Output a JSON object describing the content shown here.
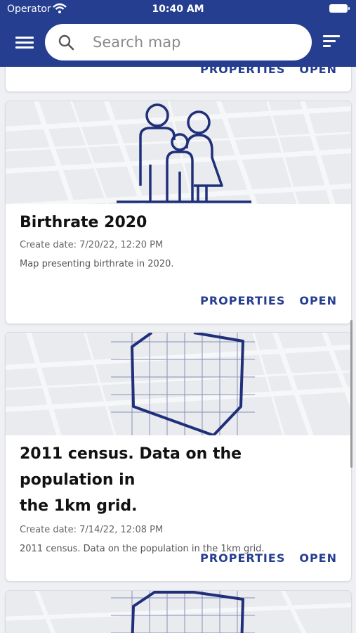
{
  "status": {
    "carrier": "Operator",
    "time": "10:40 AM"
  },
  "search": {
    "placeholder": "Search map"
  },
  "actions": {
    "properties": "PROPERTIES",
    "open": "OPEN"
  },
  "cards": [
    {
      "title": "",
      "date": "",
      "description": ""
    },
    {
      "title": "Birthrate 2020",
      "date": "Create date: 7/20/22, 12:20 PM",
      "description": "Map presenting birthrate in 2020."
    },
    {
      "title_line1": "2011 census. Data on the population in",
      "title_line2": "the 1km grid.",
      "date": "Create date: 7/14/22, 12:08 PM",
      "description": "2011 census. Data on the population in the 1km grid."
    }
  ],
  "colors": {
    "accent": "#263e8f",
    "icon_line": "#1f2f7a"
  },
  "icons": [
    "menu-icon",
    "search-icon",
    "sort-icon",
    "wifi-icon",
    "battery-icon",
    "family-icon",
    "grid-polygon-icon"
  ]
}
